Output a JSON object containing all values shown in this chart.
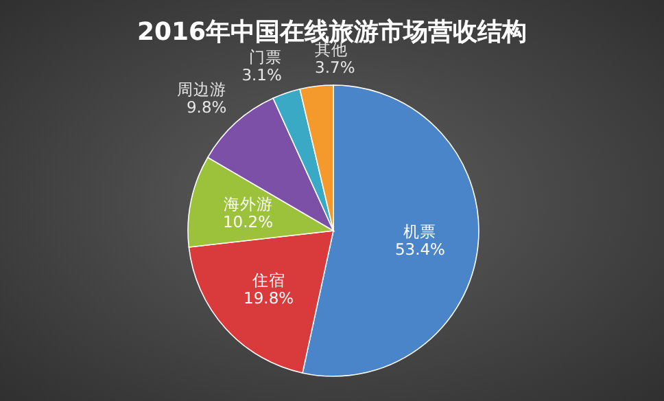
{
  "chart_data": {
    "type": "pie",
    "title": "2016年中国在线旅游市场营收结构",
    "categories": [
      "机票",
      "住宿",
      "海外游",
      "周边游",
      "门票",
      "其他"
    ],
    "values": [
      53.4,
      19.8,
      10.2,
      9.8,
      3.1,
      3.7
    ],
    "colors": [
      "#4a84c9",
      "#d93a3b",
      "#9cc23c",
      "#7b50a6",
      "#3aa9c6",
      "#f49a2c"
    ],
    "value_labels": [
      "53.4%",
      "19.8%",
      "10.2%",
      "9.8%",
      "3.1%",
      "3.7%"
    ]
  }
}
